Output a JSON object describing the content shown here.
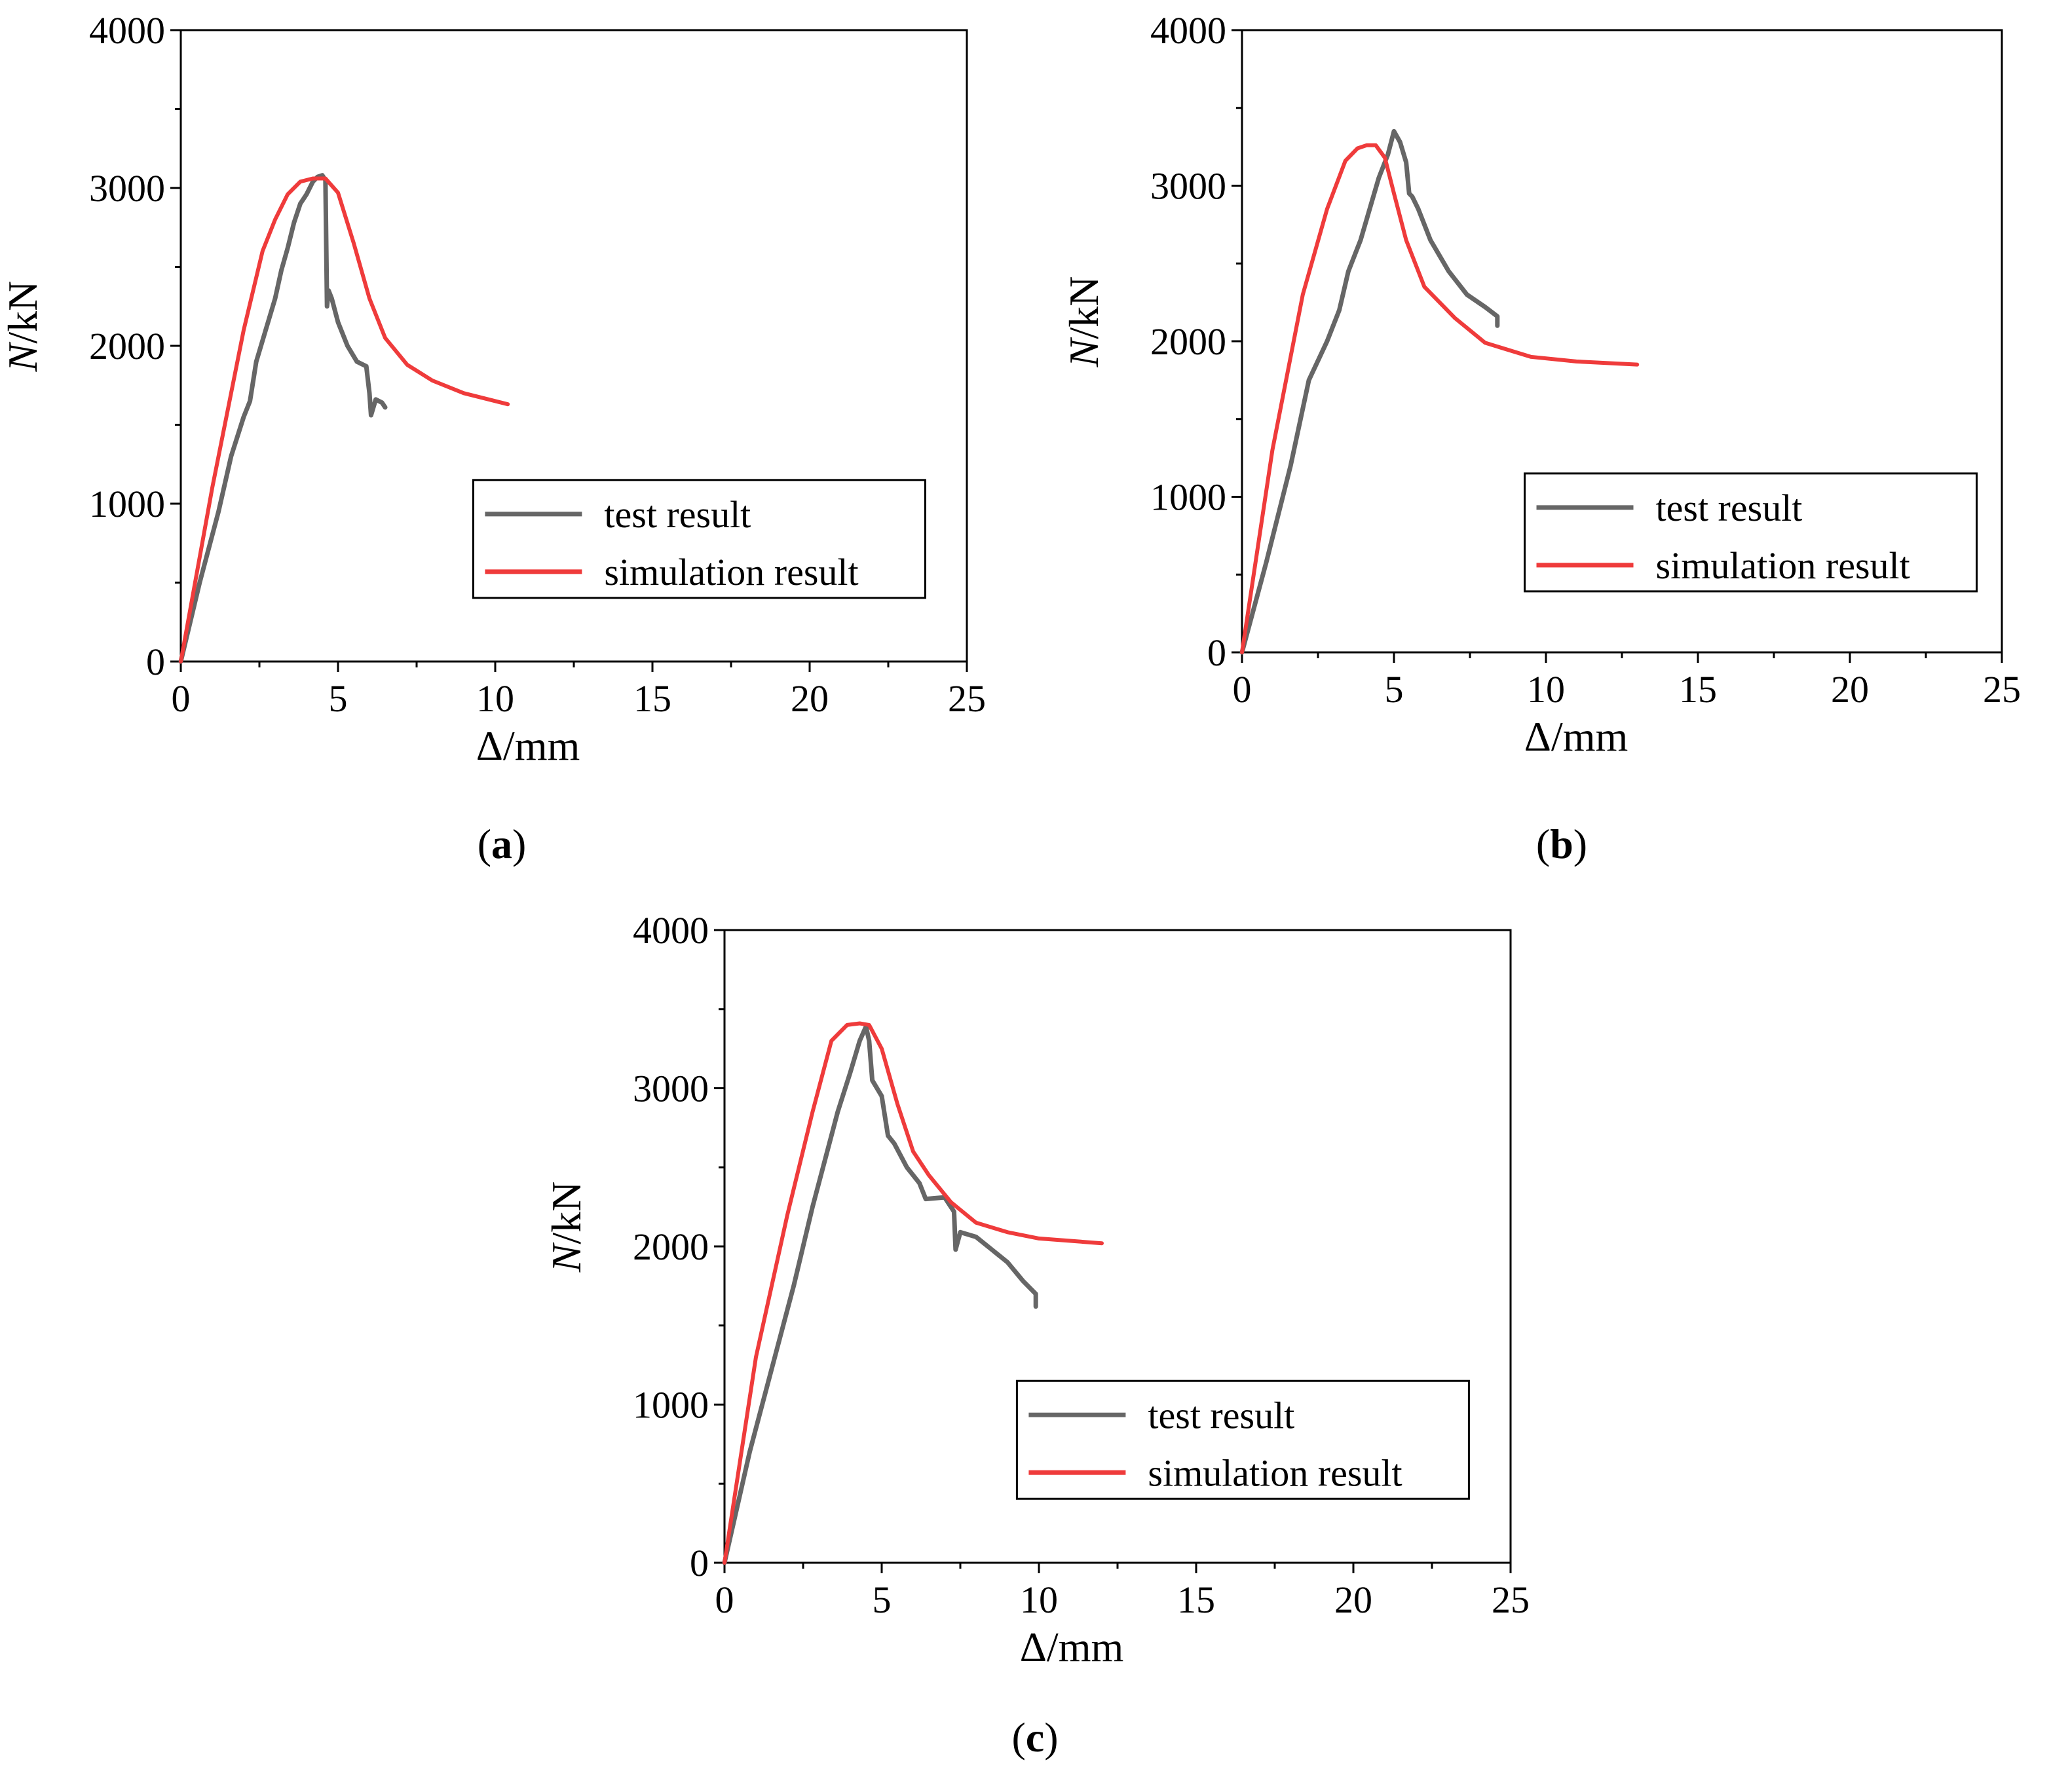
{
  "figure": {
    "captions": [
      "a",
      "b",
      "c"
    ]
  },
  "chart_data": [
    {
      "type": "line",
      "panel": "a",
      "xlabel": "Δ/mm",
      "ylabel_italic": "N",
      "ylabel_rest": "/kN",
      "xlim": [
        0,
        25
      ],
      "ylim": [
        0,
        4000
      ],
      "xticks": [
        0,
        5,
        10,
        15,
        20,
        25
      ],
      "yticks": [
        0,
        1000,
        2000,
        3000,
        4000
      ],
      "grid": false,
      "legend_position": "lower-right",
      "series": [
        {
          "name": "test result",
          "color": "#666666",
          "x": [
            0,
            0.6,
            1.2,
            1.6,
            2.0,
            2.2,
            2.4,
            2.7,
            3.0,
            3.2,
            3.4,
            3.6,
            3.8,
            4.0,
            4.2,
            4.35,
            4.5,
            4.6,
            4.65,
            4.7,
            4.8,
            5.0,
            5.3,
            5.6,
            5.9,
            6.0,
            6.05,
            6.2,
            6.4,
            6.5
          ],
          "y": [
            0,
            500,
            950,
            1300,
            1550,
            1650,
            1900,
            2100,
            2300,
            2480,
            2620,
            2780,
            2900,
            2960,
            3040,
            3070,
            3080,
            3050,
            2250,
            2350,
            2300,
            2150,
            2000,
            1900,
            1870,
            1700,
            1560,
            1660,
            1640,
            1610
          ]
        },
        {
          "name": "simulation result",
          "color": "#ef3b3b",
          "x": [
            0,
            1.0,
            2.0,
            2.6,
            3.0,
            3.4,
            3.8,
            4.2,
            4.6,
            5.0,
            5.5,
            6.0,
            6.5,
            7.2,
            8.0,
            9.0,
            10.4
          ],
          "y": [
            0,
            1100,
            2100,
            2600,
            2800,
            2960,
            3040,
            3060,
            3060,
            2970,
            2650,
            2300,
            2050,
            1880,
            1780,
            1700,
            1630
          ]
        }
      ]
    },
    {
      "type": "line",
      "panel": "b",
      "xlabel": "Δ/mm",
      "ylabel_italic": "N",
      "ylabel_rest": "/kN",
      "xlim": [
        0,
        25
      ],
      "ylim": [
        0,
        4000
      ],
      "xticks": [
        0,
        5,
        10,
        15,
        20,
        25
      ],
      "yticks": [
        0,
        1000,
        2000,
        3000,
        4000
      ],
      "grid": false,
      "legend_position": "lower-right",
      "series": [
        {
          "name": "test result",
          "color": "#666666",
          "x": [
            0,
            0.8,
            1.6,
            2.2,
            2.8,
            3.2,
            3.5,
            3.9,
            4.2,
            4.5,
            4.8,
            5.0,
            5.2,
            5.4,
            5.5,
            5.6,
            5.8,
            6.2,
            6.8,
            7.4,
            8.0,
            8.4,
            8.4
          ],
          "y": [
            0,
            580,
            1200,
            1750,
            2000,
            2200,
            2450,
            2650,
            2850,
            3050,
            3200,
            3350,
            3280,
            3150,
            2950,
            2930,
            2850,
            2650,
            2450,
            2300,
            2220,
            2160,
            2100
          ]
        },
        {
          "name": "simulation result",
          "color": "#ef3b3b",
          "x": [
            0,
            1.0,
            2.0,
            2.8,
            3.4,
            3.8,
            4.1,
            4.4,
            4.7,
            5.0,
            5.4,
            6.0,
            7.0,
            8.0,
            9.5,
            11.0,
            13.0
          ],
          "y": [
            0,
            1300,
            2300,
            2850,
            3160,
            3240,
            3260,
            3260,
            3180,
            2950,
            2650,
            2350,
            2150,
            1990,
            1900,
            1870,
            1850
          ]
        }
      ]
    },
    {
      "type": "line",
      "panel": "c",
      "xlabel": "Δ/mm",
      "ylabel_italic": "N",
      "ylabel_rest": "/kN",
      "xlim": [
        0,
        25
      ],
      "ylim": [
        0,
        4000
      ],
      "xticks": [
        0,
        5,
        10,
        15,
        20,
        25
      ],
      "yticks": [
        0,
        1000,
        2000,
        3000,
        4000
      ],
      "grid": false,
      "legend_position": "lower-right",
      "series": [
        {
          "name": "test result",
          "color": "#666666",
          "x": [
            0,
            0.8,
            1.6,
            2.2,
            2.8,
            3.2,
            3.6,
            4.0,
            4.3,
            4.5,
            4.6,
            4.7,
            5.0,
            5.2,
            5.4,
            5.8,
            6.2,
            6.4,
            7.0,
            7.3,
            7.35,
            7.5,
            8.0,
            8.5,
            9.0,
            9.5,
            9.9,
            9.9
          ],
          "y": [
            0,
            700,
            1300,
            1750,
            2250,
            2550,
            2850,
            3100,
            3300,
            3390,
            3300,
            3050,
            2950,
            2700,
            2650,
            2500,
            2400,
            2300,
            2310,
            2220,
            1980,
            2090,
            2060,
            1980,
            1900,
            1780,
            1700,
            1620
          ]
        },
        {
          "name": "simulation result",
          "color": "#ef3b3b",
          "x": [
            0,
            1.0,
            2.0,
            2.8,
            3.4,
            3.9,
            4.3,
            4.6,
            5.0,
            5.5,
            6.0,
            6.5,
            7.2,
            8.0,
            9.0,
            10.0,
            12.0
          ],
          "y": [
            0,
            1300,
            2200,
            2850,
            3300,
            3400,
            3410,
            3400,
            3250,
            2900,
            2600,
            2450,
            2280,
            2150,
            2090,
            2050,
            2020
          ]
        }
      ]
    }
  ]
}
